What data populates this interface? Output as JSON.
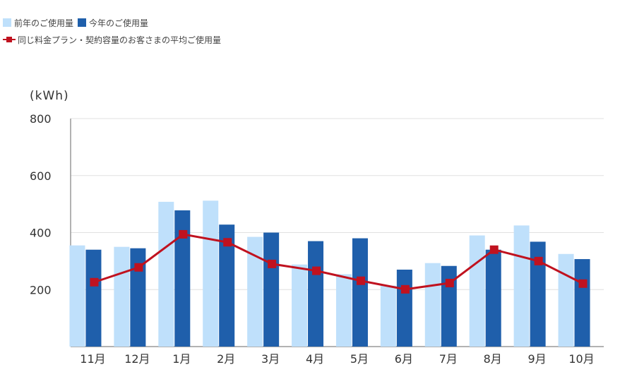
{
  "legend": {
    "prev_label": "前年のご使用量",
    "curr_label": "今年のご使用量",
    "avg_label": "同じ料金プラン・契約容量のお客さまの平均ご使用量"
  },
  "colors": {
    "prev": "#bfe0fb",
    "curr": "#1f5fab",
    "avg": "#c0121f",
    "grid": "#e0e0e0",
    "axis": "#999999"
  },
  "chart_data": {
    "type": "bar",
    "unit_label": "(kWh)",
    "categories": [
      "11月",
      "12月",
      "1月",
      "2月",
      "3月",
      "4月",
      "5月",
      "6月",
      "7月",
      "8月",
      "9月",
      "10月"
    ],
    "ylim": [
      0,
      800
    ],
    "yticks": [
      "800",
      "600",
      "400",
      "200"
    ],
    "grid": true,
    "legend_position": "top-left",
    "series": [
      {
        "name": "前年のご使用量",
        "type": "bar",
        "values": [
          355,
          350,
          508,
          512,
          385,
          288,
          254,
          214,
          293,
          390,
          425,
          325
        ]
      },
      {
        "name": "今年のご使用量",
        "type": "bar",
        "values": [
          340,
          345,
          478,
          428,
          400,
          370,
          380,
          270,
          283,
          340,
          368,
          307
        ]
      },
      {
        "name": "同じ料金プラン・契約容量のお客さまの平均ご使用量",
        "type": "line",
        "values": [
          226,
          278,
          394,
          366,
          290,
          266,
          231,
          201,
          223,
          340,
          300,
          221
        ]
      }
    ]
  }
}
